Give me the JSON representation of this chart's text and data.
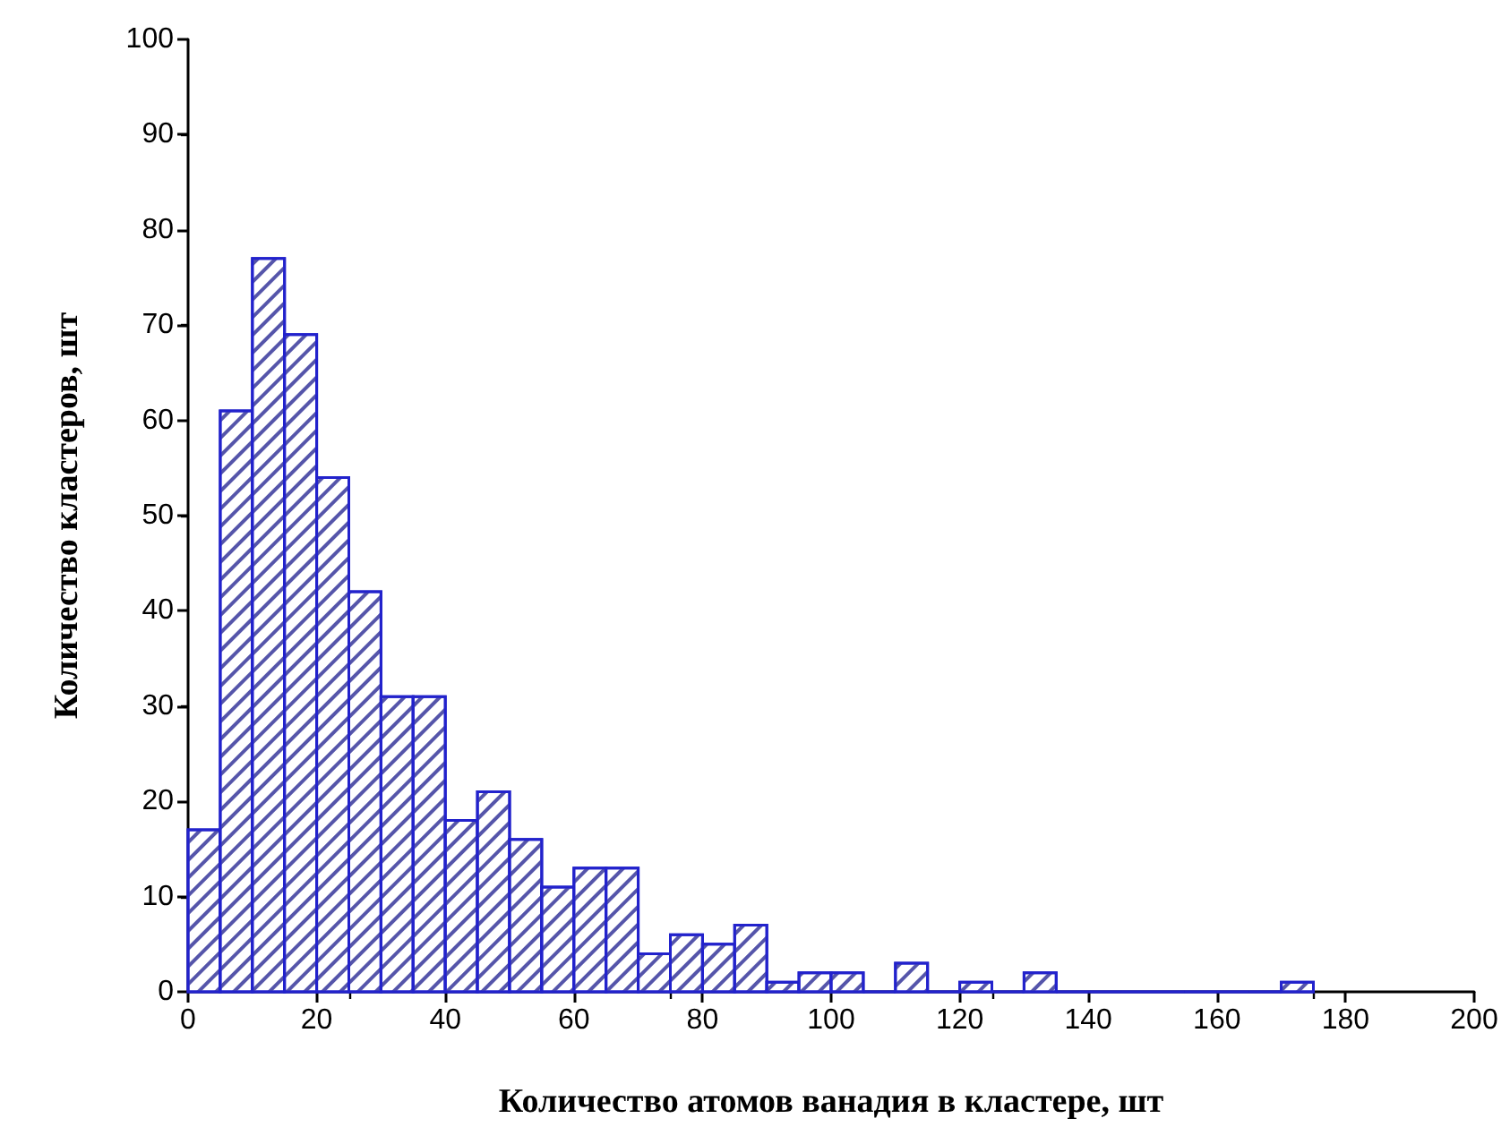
{
  "chart_data": {
    "type": "histogram",
    "xlabel": "Количество атомов ванадия в кластере, шт",
    "ylabel": "Количество кластеров, шт",
    "bins": [
      0,
      5,
      10,
      15,
      20,
      25,
      30,
      35,
      40,
      45,
      50,
      55,
      60,
      65,
      70,
      75,
      80,
      85,
      90,
      95,
      100,
      105,
      110,
      115,
      120,
      125,
      130,
      135,
      140,
      145,
      150,
      155,
      160,
      165,
      170,
      175
    ],
    "values": [
      17,
      61,
      77,
      69,
      54,
      42,
      31,
      31,
      18,
      21,
      16,
      11,
      13,
      13,
      4,
      6,
      5,
      7,
      1,
      2,
      2,
      0,
      3,
      0,
      1,
      0,
      2,
      0,
      0,
      0,
      0,
      0,
      0,
      0,
      1
    ],
    "color": "#2222cc",
    "xlim": [
      0,
      200
    ],
    "xticks": [
      0,
      20,
      40,
      60,
      80,
      100,
      120,
      140,
      160,
      180,
      200
    ],
    "ylim": [
      0,
      100
    ],
    "yticks": [
      0,
      10,
      20,
      30,
      40,
      50,
      60,
      70,
      80,
      90,
      100
    ],
    "grid": false
  }
}
